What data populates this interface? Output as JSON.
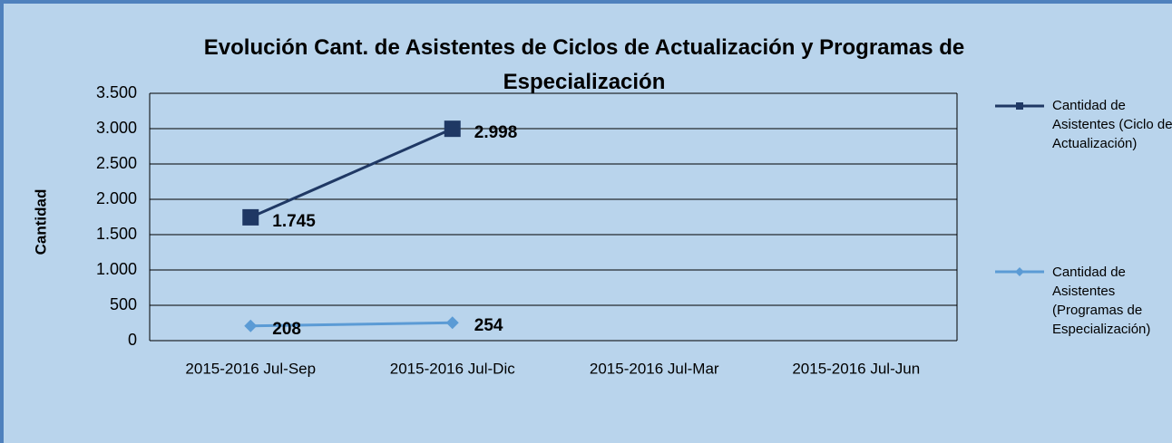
{
  "chart_data": {
    "type": "line",
    "title": "Evolución Cant. de Asistentes de Ciclos de Actualización y Programas de Especialización",
    "y_label": "Cantidad",
    "categories": [
      "2015-2016 Jul-Sep",
      "2015-2016 Jul-Dic",
      "2015-2016 Jul-Mar",
      "2015-2016 Jul-Jun"
    ],
    "series": [
      {
        "name": "Cantidad de Asistentes (Ciclo de Actualización)",
        "color": "#1f3864",
        "marker": "square",
        "values": [
          1745,
          2998,
          null,
          null
        ],
        "value_labels": [
          "1.745",
          "2.998",
          null,
          null
        ]
      },
      {
        "name": "Cantidad de Asistentes (Programas de Especialización)",
        "color": "#5b9bd5",
        "marker": "diamond",
        "values": [
          208,
          254,
          null,
          null
        ]
      }
    ],
    "ylim": [
      0,
      3500
    ],
    "yticks": [
      0,
      500,
      {
        "value": 1000,
        "label": "1.000"
      },
      {
        "value": 1500,
        "label": "1.500"
      },
      {
        "value": 2000,
        "label": "2.000"
      },
      {
        "value": 2500,
        "label": "2.500"
      },
      {
        "value": 3000,
        "label": "3.000"
      },
      {
        "value": 3500,
        "label": "3.500"
      }
    ],
    "grid": true,
    "legend": "right"
  }
}
